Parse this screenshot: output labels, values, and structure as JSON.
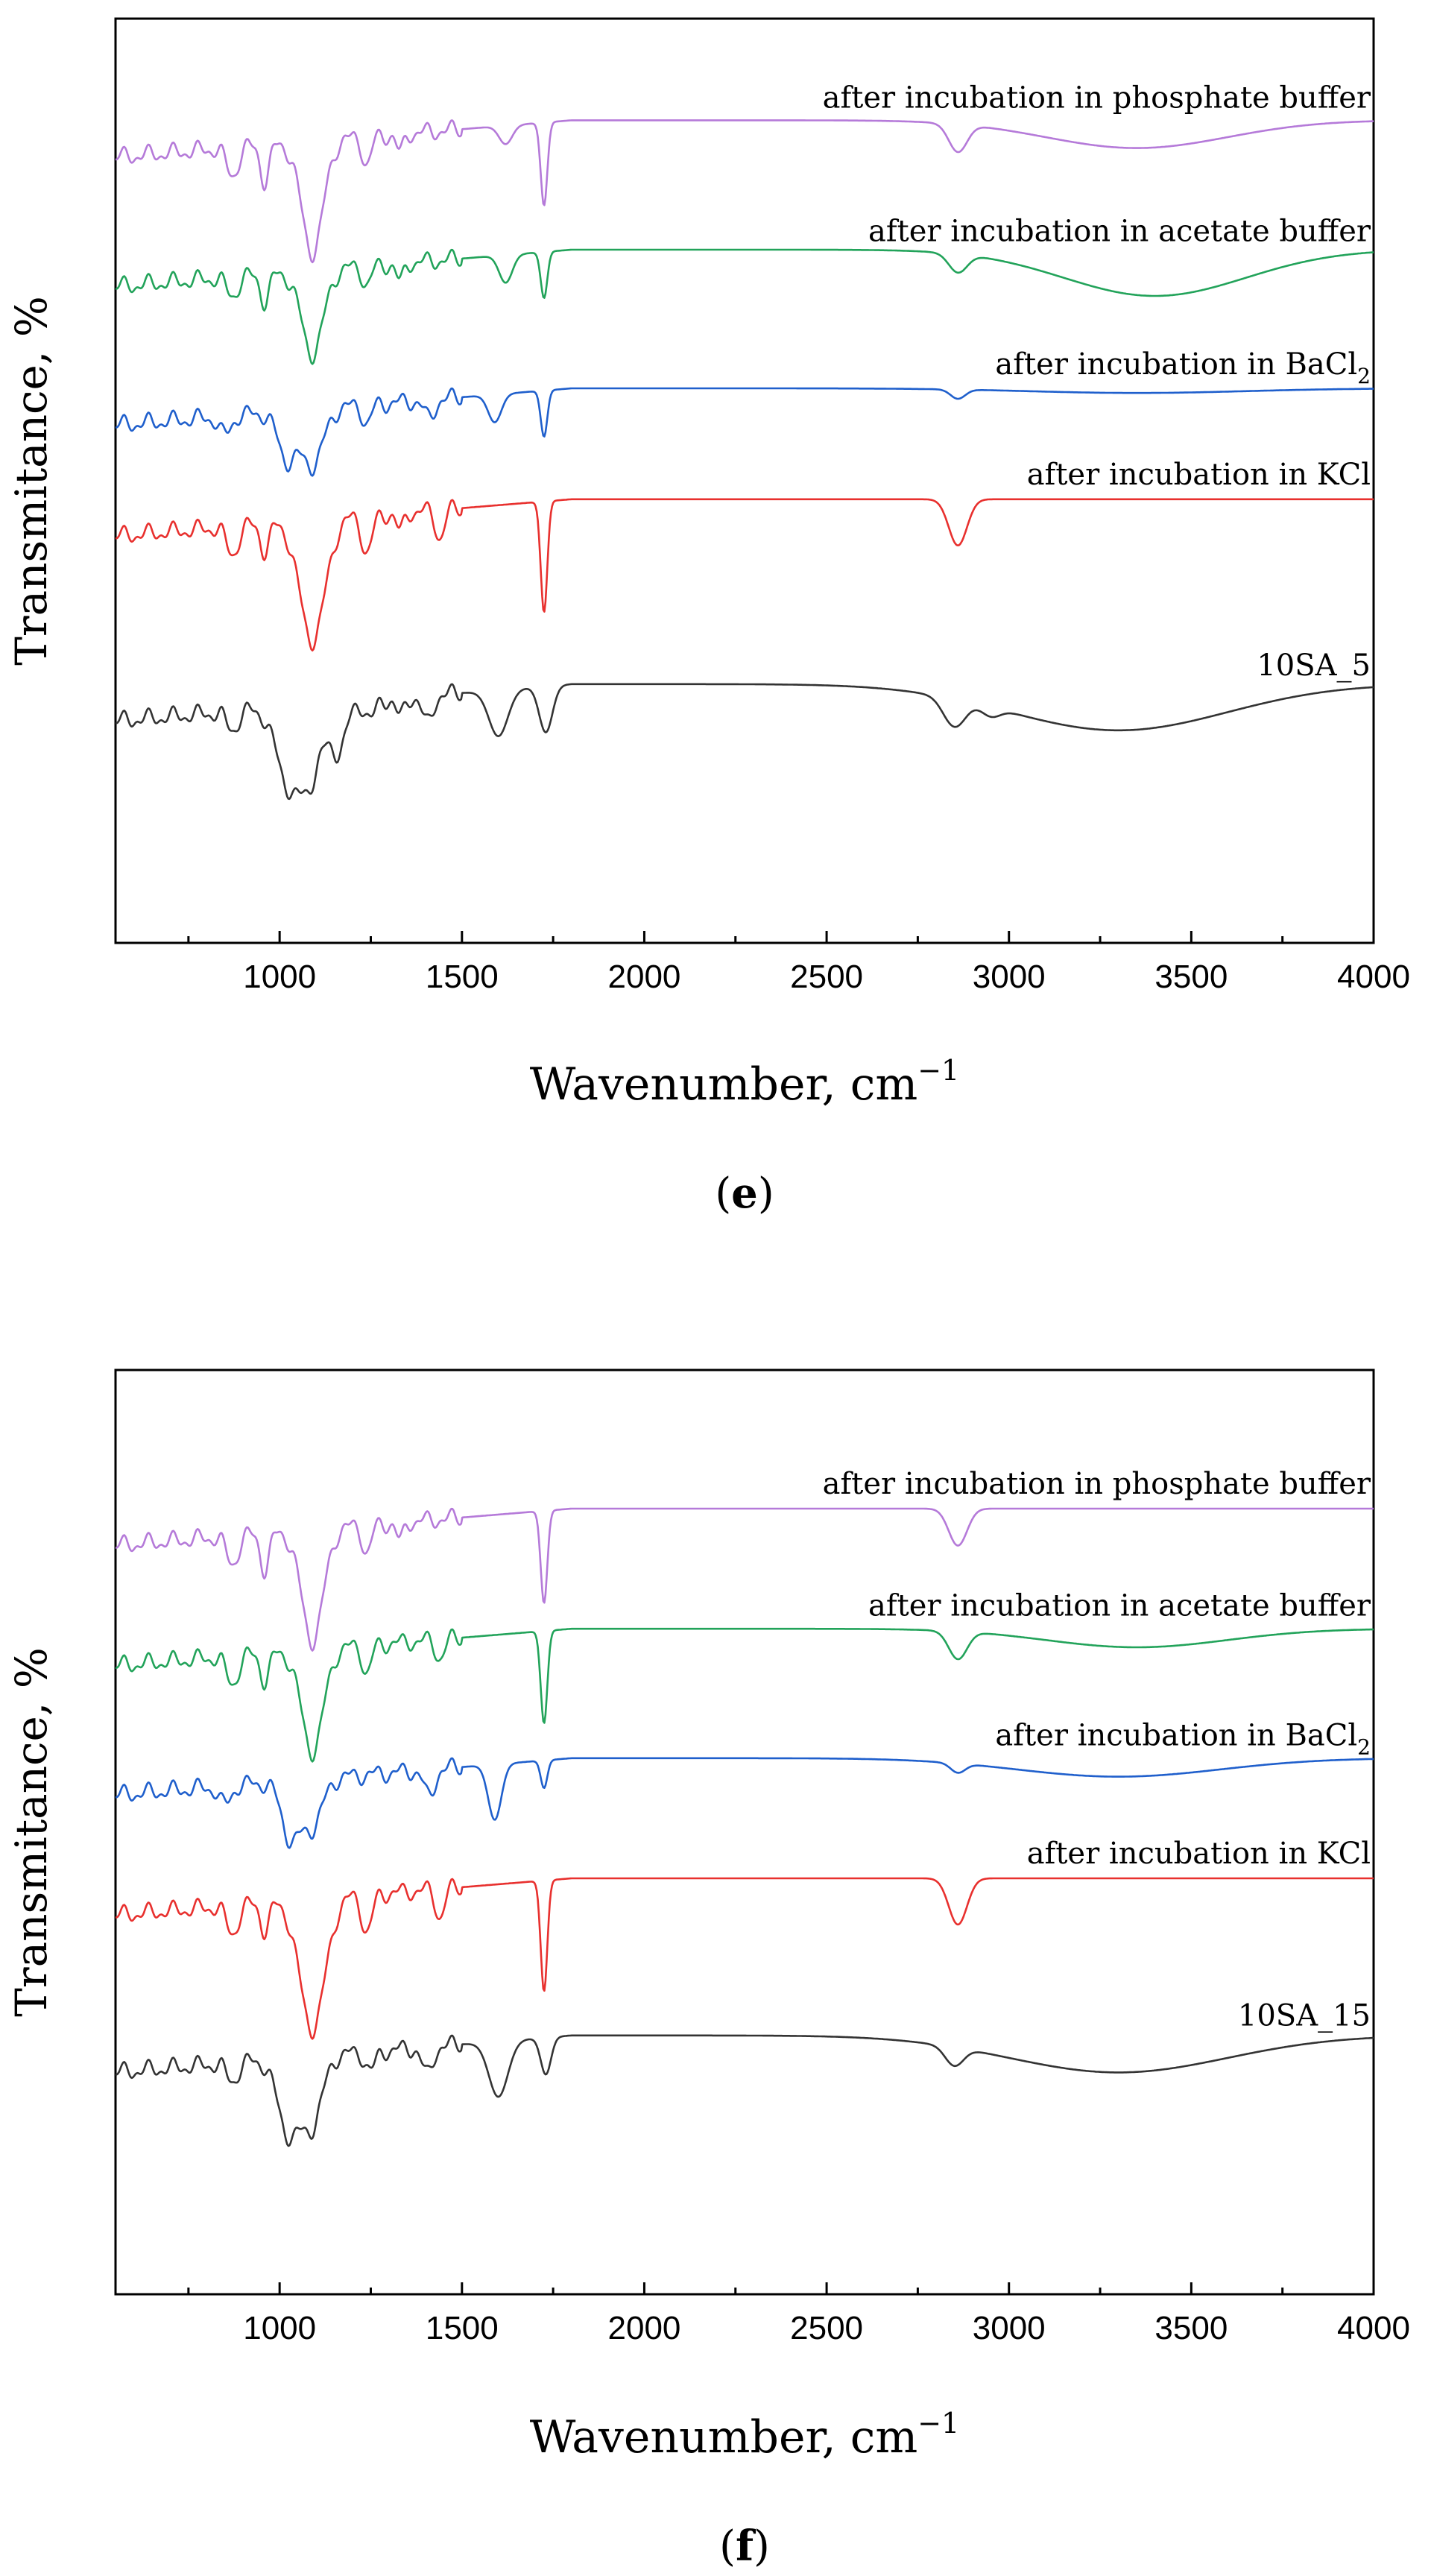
{
  "figure": {
    "panel_labels": [
      "e",
      "f"
    ]
  },
  "chart_data": [
    {
      "type": "line",
      "panel": "e",
      "title": "",
      "xlabel": "Wavenumber, cm",
      "xlabel_sup": "−1",
      "ylabel": "Transmitance, %",
      "xlim": [
        550,
        4000
      ],
      "ylim": [
        0,
        100
      ],
      "x_ticks": [
        1000,
        1500,
        2000,
        2500,
        3000,
        3500,
        4000
      ],
      "x_tick_labels": [
        "1000",
        "1500",
        "2000",
        "2500",
        "3000",
        "3500",
        "4000"
      ],
      "y_ticks_shown": false,
      "series": [
        {
          "name": "10SA_5",
          "label_main": "10SA_5",
          "label_sub": "",
          "color": "#333333",
          "base": 28,
          "peaks": [
            [
              870,
              2,
              16
            ],
            [
              1025,
              8,
              34
            ],
            [
              1085,
              7,
              30
            ],
            [
              1160,
              5,
              24
            ],
            [
              1250,
              2,
              14
            ],
            [
              1330,
              2,
              12
            ],
            [
              1405,
              3,
              14
            ],
            [
              1600,
              5,
              26
            ],
            [
              1730,
              5,
              18
            ],
            [
              2850,
              3,
              30
            ],
            [
              2950,
              1,
              25
            ],
            [
              3300,
              5,
              300
            ]
          ]
        },
        {
          "name": "after incubation in KCl",
          "label_main": "after incubation in KCl",
          "label_sub": "",
          "color": "#e8302e",
          "base": 48,
          "peaks": [
            [
              870,
              3,
              16
            ],
            [
              960,
              3,
              12
            ],
            [
              1090,
              13,
              35
            ],
            [
              1240,
              4,
              14
            ],
            [
              1330,
              2,
              10
            ],
            [
              1440,
              3,
              12
            ],
            [
              1725,
              12,
              9
            ],
            [
              2860,
              5,
              25
            ]
          ]
        },
        {
          "name": "after incubation in BaCl",
          "label_main": "after incubation in BaCl",
          "label_sub": "2",
          "color": "#1f5fcc",
          "base": 60,
          "peaks": [
            [
              850,
              2,
              16
            ],
            [
              1020,
              5,
              25
            ],
            [
              1090,
              6,
              30
            ],
            [
              1240,
              2,
              12
            ],
            [
              1410,
              2,
              14
            ],
            [
              1590,
              3,
              18
            ],
            [
              1725,
              5,
              9
            ],
            [
              2860,
              1,
              20
            ],
            [
              3350,
              0.5,
              300
            ]
          ]
        },
        {
          "name": "after incubation in acetate buffer",
          "label_main": "after incubation in acetate buffer",
          "label_sub": "",
          "color": "#22a35a",
          "base": 75,
          "peaks": [
            [
              870,
              2,
              16
            ],
            [
              960,
              3,
              12
            ],
            [
              1090,
              9,
              30
            ],
            [
              1240,
              2,
              12
            ],
            [
              1330,
              2,
              10
            ],
            [
              1620,
              3,
              18
            ],
            [
              1725,
              5,
              9
            ],
            [
              2860,
              2,
              25
            ],
            [
              3400,
              5,
              250
            ]
          ]
        },
        {
          "name": "after incubation in phosphate buffer",
          "label_main": "after incubation in phosphate buffer",
          "label_sub": "",
          "color": "#b57ad9",
          "base": 89,
          "peaks": [
            [
              870,
              3,
              16
            ],
            [
              960,
              4,
              12
            ],
            [
              1090,
              12,
              30
            ],
            [
              1240,
              3,
              12
            ],
            [
              1330,
              2,
              10
            ],
            [
              1620,
              2,
              18
            ],
            [
              1725,
              9,
              9
            ],
            [
              2860,
              3,
              25
            ],
            [
              3350,
              3,
              250
            ]
          ]
        }
      ]
    },
    {
      "type": "line",
      "panel": "f",
      "title": "",
      "xlabel": "Wavenumber, cm",
      "xlabel_sup": "−1",
      "ylabel": "Transmitance, %",
      "xlim": [
        550,
        4000
      ],
      "ylim": [
        0,
        100
      ],
      "x_ticks": [
        1000,
        1500,
        2000,
        2500,
        3000,
        3500,
        4000
      ],
      "x_tick_labels": [
        "1000",
        "1500",
        "2000",
        "2500",
        "3000",
        "3500",
        "4000"
      ],
      "y_ticks_shown": false,
      "series": [
        {
          "name": "10SA_15",
          "label_main": "10SA_15",
          "label_sub": "",
          "color": "#333333",
          "base": 28,
          "peaks": [
            [
              870,
              2,
              16
            ],
            [
              1025,
              8,
              30
            ],
            [
              1090,
              7,
              28
            ],
            [
              1250,
              2,
              14
            ],
            [
              1405,
              3,
              14
            ],
            [
              1600,
              6,
              26
            ],
            [
              1730,
              4,
              14
            ],
            [
              2850,
              2,
              25
            ],
            [
              3300,
              4,
              300
            ]
          ]
        },
        {
          "name": "after incubation in KCl",
          "label_main": "after incubation in KCl",
          "label_sub": "",
          "color": "#e8302e",
          "base": 45,
          "peaks": [
            [
              870,
              3,
              16
            ],
            [
              960,
              3,
              12
            ],
            [
              1090,
              14,
              35
            ],
            [
              1240,
              4,
              14
            ],
            [
              1440,
              3,
              12
            ],
            [
              1725,
              12,
              9
            ],
            [
              2860,
              5,
              25
            ]
          ]
        },
        {
          "name": "after incubation in BaCl",
          "label_main": "after incubation in BaCl",
          "label_sub": "2",
          "color": "#1f5fcc",
          "base": 58,
          "peaks": [
            [
              850,
              2,
              16
            ],
            [
              1030,
              6,
              25
            ],
            [
              1090,
              5,
              28
            ],
            [
              1410,
              3,
              14
            ],
            [
              1590,
              6,
              18
            ],
            [
              1725,
              3,
              9
            ],
            [
              2860,
              1,
              20
            ],
            [
              3300,
              2,
              280
            ]
          ]
        },
        {
          "name": "after incubation in acetate buffer",
          "label_main": "after incubation in acetate buffer",
          "label_sub": "",
          "color": "#22a35a",
          "base": 72,
          "peaks": [
            [
              870,
              3,
              16
            ],
            [
              960,
              3,
              12
            ],
            [
              1090,
              11,
              30
            ],
            [
              1240,
              3,
              12
            ],
            [
              1440,
              2,
              12
            ],
            [
              1725,
              10,
              9
            ],
            [
              2860,
              3,
              25
            ],
            [
              3350,
              2,
              250
            ]
          ]
        },
        {
          "name": "after incubation in phosphate buffer",
          "label_main": "after incubation in phosphate buffer",
          "label_sub": "",
          "color": "#b57ad9",
          "base": 85,
          "peaks": [
            [
              870,
              3,
              16
            ],
            [
              960,
              4,
              12
            ],
            [
              1090,
              12,
              30
            ],
            [
              1240,
              3,
              12
            ],
            [
              1330,
              2,
              10
            ],
            [
              1725,
              10,
              9
            ],
            [
              2860,
              4,
              25
            ]
          ]
        }
      ]
    }
  ]
}
